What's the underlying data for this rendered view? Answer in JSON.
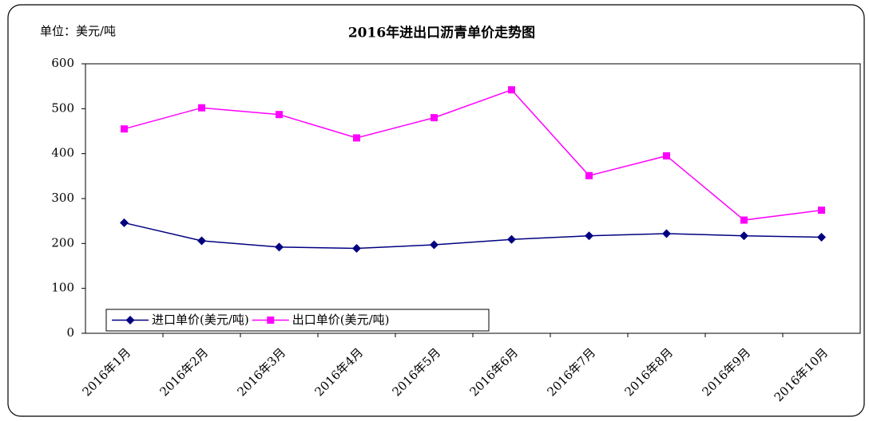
{
  "chart_data": {
    "type": "line",
    "title": "2016年进出口沥青单价走势图",
    "unit_label": "单位：美元/吨",
    "categories": [
      "2016年1月",
      "2016年2月",
      "2016年3月",
      "2016年4月",
      "2016年5月",
      "2016年6月",
      "2016年7月",
      "2016年8月",
      "2016年9月",
      "2016年10月"
    ],
    "series": [
      {
        "name": "进口单价(美元/吨)",
        "color": "#000080",
        "marker": "diamond",
        "values": [
          246,
          206,
          192,
          189,
          197,
          209,
          217,
          222,
          217,
          214
        ]
      },
      {
        "name": "出口单价(美元/吨)",
        "color": "#ff00ff",
        "marker": "square",
        "values": [
          455,
          502,
          487,
          435,
          480,
          542,
          351,
          395,
          252,
          274
        ]
      }
    ],
    "ylim": [
      0,
      600
    ],
    "yticks": [
      0,
      100,
      200,
      300,
      400,
      500,
      600
    ],
    "grid": false,
    "legend": "lower left"
  }
}
